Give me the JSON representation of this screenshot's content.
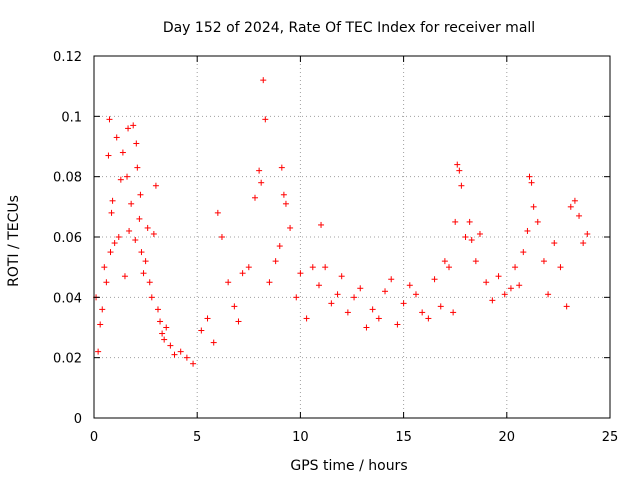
{
  "chart_data": {
    "type": "scatter",
    "title": "Day 152 of 2024, Rate Of TEC Index for receiver mall",
    "xlabel": "GPS time / hours",
    "ylabel": "ROTI / TECUs",
    "xlim": [
      0,
      25
    ],
    "ylim": [
      0,
      0.12
    ],
    "xticks": [
      0,
      5,
      10,
      15,
      20,
      25
    ],
    "xtick_labels": [
      "0",
      "5",
      "10",
      "15",
      "20",
      "25"
    ],
    "yticks": [
      0,
      0.02,
      0.04,
      0.06,
      0.08,
      0.1,
      0.12
    ],
    "ytick_labels": [
      "0",
      "0.02",
      "0.04",
      "0.06",
      "0.08",
      "0.1",
      "0.12"
    ],
    "grid": true,
    "marker": "+",
    "series": [
      {
        "name": "ROTI",
        "color": "#ff0000",
        "x": [
          0.1,
          0.2,
          0.3,
          0.4,
          0.5,
          0.6,
          0.7,
          0.75,
          0.8,
          0.85,
          0.9,
          1.0,
          1.1,
          1.2,
          1.3,
          1.4,
          1.5,
          1.6,
          1.65,
          1.7,
          1.8,
          1.9,
          2.0,
          2.05,
          2.1,
          2.2,
          2.25,
          2.3,
          2.4,
          2.5,
          2.6,
          2.7,
          2.8,
          2.9,
          3.0,
          3.1,
          3.2,
          3.3,
          3.4,
          3.5,
          3.7,
          3.9,
          4.2,
          4.5,
          4.8,
          5.2,
          5.5,
          5.8,
          6.0,
          6.2,
          6.5,
          6.8,
          7.0,
          7.2,
          7.5,
          7.8,
          8.0,
          8.1,
          8.2,
          8.3,
          8.5,
          8.8,
          9.0,
          9.1,
          9.2,
          9.3,
          9.5,
          9.8,
          10.0,
          10.3,
          10.6,
          10.9,
          11.0,
          11.2,
          11.5,
          11.8,
          12.0,
          12.3,
          12.6,
          12.9,
          13.2,
          13.5,
          13.8,
          14.1,
          14.4,
          14.7,
          15.0,
          15.3,
          15.6,
          15.9,
          16.2,
          16.5,
          16.8,
          17.0,
          17.2,
          17.4,
          17.5,
          17.6,
          17.7,
          17.8,
          18.0,
          18.2,
          18.3,
          18.5,
          18.7,
          19.0,
          19.3,
          19.6,
          19.9,
          20.2,
          20.4,
          20.6,
          20.8,
          21.0,
          21.1,
          21.2,
          21.3,
          21.5,
          21.8,
          22.0,
          22.3,
          22.6,
          22.9,
          23.1,
          23.3,
          23.5,
          23.7,
          23.9
        ],
        "y": [
          0.04,
          0.022,
          0.031,
          0.036,
          0.05,
          0.045,
          0.087,
          0.099,
          0.055,
          0.068,
          0.072,
          0.058,
          0.093,
          0.06,
          0.079,
          0.088,
          0.047,
          0.08,
          0.096,
          0.062,
          0.071,
          0.097,
          0.059,
          0.091,
          0.083,
          0.066,
          0.074,
          0.055,
          0.048,
          0.052,
          0.063,
          0.045,
          0.04,
          0.061,
          0.077,
          0.036,
          0.032,
          0.028,
          0.026,
          0.03,
          0.024,
          0.021,
          0.022,
          0.02,
          0.018,
          0.029,
          0.033,
          0.025,
          0.068,
          0.06,
          0.045,
          0.037,
          0.032,
          0.048,
          0.05,
          0.073,
          0.082,
          0.078,
          0.112,
          0.099,
          0.045,
          0.052,
          0.057,
          0.083,
          0.074,
          0.071,
          0.063,
          0.04,
          0.048,
          0.033,
          0.05,
          0.044,
          0.064,
          0.05,
          0.038,
          0.041,
          0.047,
          0.035,
          0.04,
          0.043,
          0.03,
          0.036,
          0.033,
          0.042,
          0.046,
          0.031,
          0.038,
          0.044,
          0.041,
          0.035,
          0.033,
          0.046,
          0.037,
          0.052,
          0.05,
          0.035,
          0.065,
          0.084,
          0.082,
          0.077,
          0.06,
          0.065,
          0.059,
          0.052,
          0.061,
          0.045,
          0.039,
          0.047,
          0.041,
          0.043,
          0.05,
          0.044,
          0.055,
          0.062,
          0.08,
          0.078,
          0.07,
          0.065,
          0.052,
          0.041,
          0.058,
          0.05,
          0.037,
          0.07,
          0.072,
          0.067,
          0.058,
          0.061
        ]
      }
    ]
  }
}
